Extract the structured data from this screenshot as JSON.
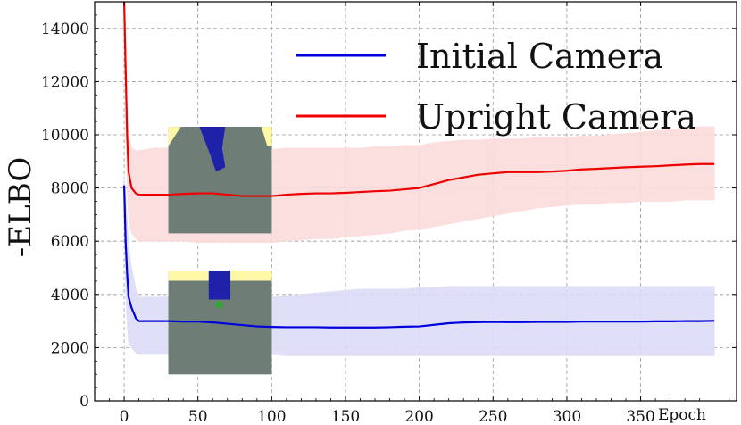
{
  "chart_data": {
    "type": "line",
    "title": "",
    "xlabel": "Epoch",
    "ylabel": "-ELBO",
    "xlim": [
      -20,
      415
    ],
    "ylim": [
      0,
      15000
    ],
    "xticks": [
      0,
      50,
      100,
      150,
      200,
      250,
      300,
      350
    ],
    "xtick_labels": [
      "0",
      "50",
      "100",
      "150",
      "200",
      "250",
      "300",
      "350"
    ],
    "yticks": [
      0,
      2000,
      4000,
      6000,
      8000,
      10000,
      12000,
      14000
    ],
    "ytick_labels": [
      "0",
      "2000",
      "4000",
      "6000",
      "8000",
      "10000",
      "12000",
      "14000"
    ],
    "grid": true,
    "legend_position": "top-right",
    "series": [
      {
        "name": "Initial Camera",
        "color": "#0000dd",
        "band_color": "#dcdcf8",
        "x": [
          0,
          1,
          2,
          3,
          5,
          8,
          10,
          15,
          20,
          30,
          40,
          50,
          60,
          70,
          80,
          90,
          100,
          110,
          120,
          130,
          140,
          150,
          160,
          170,
          180,
          190,
          200,
          210,
          220,
          230,
          240,
          250,
          260,
          270,
          280,
          290,
          300,
          310,
          320,
          330,
          340,
          350,
          360,
          370,
          380,
          390,
          400
        ],
        "values": [
          8100,
          6000,
          4800,
          3900,
          3500,
          3100,
          3000,
          3000,
          3000,
          3000,
          2980,
          2980,
          2950,
          2900,
          2850,
          2800,
          2780,
          2770,
          2770,
          2770,
          2760,
          2760,
          2760,
          2760,
          2770,
          2790,
          2800,
          2860,
          2920,
          2950,
          2960,
          2970,
          2960,
          2960,
          2970,
          2970,
          2970,
          2980,
          2980,
          2980,
          2980,
          2980,
          2990,
          2990,
          3000,
          3000,
          3010
        ],
        "upper": [
          8500,
          7800,
          6800,
          5800,
          5000,
          4200,
          3900,
          3900,
          3900,
          3900,
          3900,
          3900,
          3900,
          3900,
          3900,
          3900,
          3900,
          3950,
          4000,
          4050,
          4100,
          4150,
          4200,
          4200,
          4200,
          4200,
          4250,
          4250,
          4300,
          4300,
          4300,
          4300,
          4300,
          4300,
          4300,
          4300,
          4300,
          4300,
          4300,
          4300,
          4300,
          4300,
          4300,
          4300,
          4300,
          4300,
          4300
        ],
        "lower": [
          7700,
          4200,
          2900,
          2200,
          2000,
          1800,
          1750,
          1750,
          1750,
          1750,
          1750,
          1750,
          1750,
          1750,
          1750,
          1750,
          1750,
          1700,
          1700,
          1700,
          1700,
          1700,
          1700,
          1700,
          1700,
          1700,
          1700,
          1700,
          1700,
          1700,
          1700,
          1700,
          1700,
          1700,
          1700,
          1700,
          1700,
          1700,
          1700,
          1700,
          1700,
          1700,
          1700,
          1700,
          1700,
          1700,
          1700
        ]
      },
      {
        "name": "Upright Camera",
        "color": "#ee0000",
        "band_color": "#fbdcdc",
        "x": [
          0,
          1,
          2,
          3,
          5,
          8,
          10,
          15,
          20,
          30,
          40,
          50,
          60,
          70,
          80,
          90,
          100,
          110,
          120,
          130,
          140,
          150,
          160,
          170,
          180,
          190,
          200,
          210,
          220,
          230,
          240,
          250,
          260,
          270,
          280,
          290,
          300,
          310,
          320,
          330,
          340,
          350,
          360,
          370,
          380,
          390,
          400
        ],
        "values": [
          15000,
          12500,
          10000,
          8600,
          8000,
          7800,
          7750,
          7750,
          7750,
          7750,
          7780,
          7800,
          7800,
          7750,
          7700,
          7700,
          7700,
          7750,
          7780,
          7800,
          7800,
          7820,
          7850,
          7880,
          7900,
          7950,
          8000,
          8150,
          8300,
          8400,
          8500,
          8550,
          8600,
          8600,
          8600,
          8620,
          8650,
          8700,
          8720,
          8750,
          8780,
          8800,
          8820,
          8850,
          8880,
          8900,
          8900
        ],
        "upper": [
          15000,
          13500,
          11000,
          10000,
          9500,
          9400,
          9400,
          9450,
          9500,
          9500,
          9500,
          9500,
          9500,
          9500,
          9450,
          9450,
          9450,
          9500,
          9500,
          9500,
          9500,
          9500,
          9500,
          9550,
          9550,
          9600,
          9600,
          9700,
          9750,
          9800,
          9800,
          9850,
          9850,
          9850,
          9900,
          9900,
          9900,
          9950,
          9950,
          10000,
          10050,
          10100,
          10150,
          10200,
          10250,
          10300,
          10300
        ],
        "lower": [
          15000,
          11500,
          8000,
          6800,
          6300,
          6100,
          6000,
          6000,
          6000,
          6000,
          6000,
          5950,
          5950,
          5950,
          5950,
          5950,
          5950,
          6000,
          6050,
          6100,
          6100,
          6150,
          6200,
          6250,
          6300,
          6400,
          6450,
          6550,
          6650,
          6750,
          6850,
          6950,
          7050,
          7150,
          7250,
          7300,
          7350,
          7400,
          7400,
          7450,
          7450,
          7500,
          7500,
          7500,
          7550,
          7550,
          7550
        ]
      }
    ],
    "insets": [
      {
        "name": "upright-camera-thumbnail",
        "near_series": "Upright Camera",
        "x_range": [
          30,
          100
        ],
        "y_range": [
          6300,
          10300
        ]
      },
      {
        "name": "initial-camera-thumbnail",
        "near_series": "Initial Camera",
        "x_range": [
          30,
          100
        ],
        "y_range": [
          1000,
          4900
        ]
      }
    ]
  }
}
